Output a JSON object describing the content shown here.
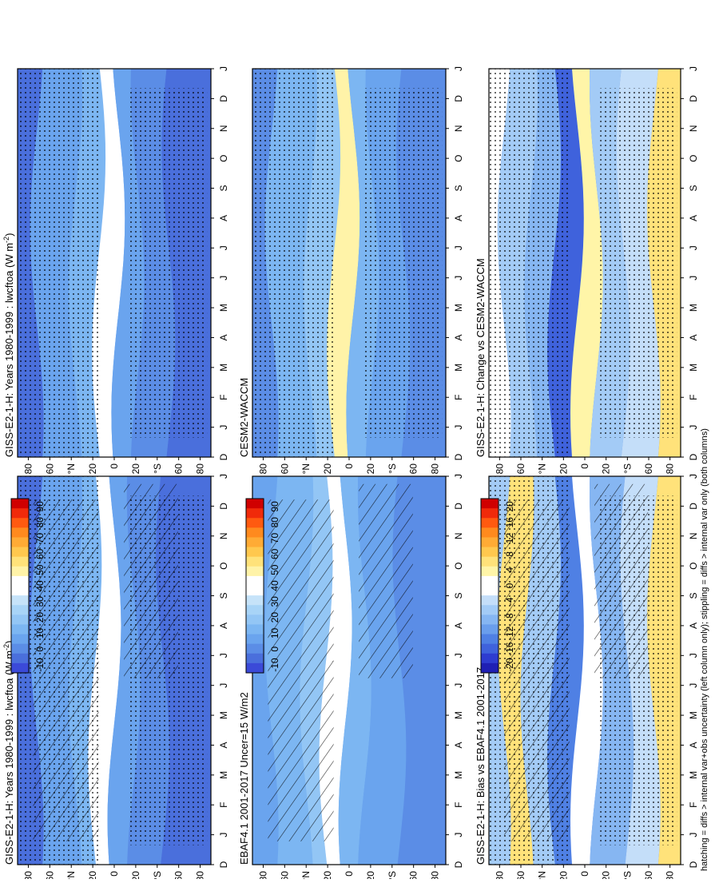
{
  "footnote": "hatching = diffs > internal var+obs uncertainty (left column only); stippling = diffs > internal var only (both columns)",
  "colors": {
    "abs_scale": [
      "#3b4ad8",
      "#4a6fdc",
      "#5b8de6",
      "#6aa4ee",
      "#7cb6f2",
      "#93c6f5",
      "#a8d4f7",
      "#c6e3f9",
      "#ffffff",
      "#ffffff",
      "#fff3a8",
      "#ffe27a",
      "#ffc84e",
      "#ffab35",
      "#ff8a1e",
      "#ff5a10",
      "#f02a0a",
      "#d00000"
    ],
    "diff_scale": [
      "#1f1fb4",
      "#2e3cd0",
      "#3f62dc",
      "#4f80e4",
      "#6a9eec",
      "#86b6f2",
      "#a3cbf6",
      "#c4def9",
      "#ffffff",
      "#ffffff",
      "#fff5a8",
      "#ffe27a",
      "#ffc84e",
      "#ffab35",
      "#ff8a1e",
      "#ff5a10",
      "#f02a0a",
      "#d00000"
    ]
  },
  "panels": [
    {
      "id": "p1",
      "title": "GISS-E2-1-H: Years 1980-1999 : lwcftoa (W m",
      "title_sup": "-2",
      "title_end": ")",
      "colorbar": "abs",
      "hatch": true,
      "stipple": true
    },
    {
      "id": "p2",
      "title": "GISS-E2-1-H: Years 1980-1999 : lwcftoa (W m",
      "title_sup": "-2",
      "title_end": ")",
      "colorbar": "abs",
      "hatch": false,
      "stipple": true
    },
    {
      "id": "p3",
      "title": "EBAF4.1 2001-2017 Uncer=15 W/m2",
      "title_sup": "",
      "title_end": "",
      "colorbar": "abs",
      "hatch": true,
      "stipple": false
    },
    {
      "id": "p4",
      "title": "CESM2-WACCM",
      "title_sup": "",
      "title_end": "",
      "colorbar": "abs",
      "hatch": false,
      "stipple": true
    },
    {
      "id": "p5",
      "title": "GISS-E2-1-H: Bias vs EBAF4.1 2001-2017",
      "title_sup": "",
      "title_end": "",
      "colorbar": "diff",
      "hatch": true,
      "stipple": true
    },
    {
      "id": "p6",
      "title": "GISS-E2-1-H: Change vs CESM2-WACCM",
      "title_sup": "",
      "title_end": "",
      "colorbar": "diff",
      "hatch": false,
      "stipple": true
    }
  ],
  "axes": {
    "months": [
      "D",
      "J",
      "F",
      "M",
      "A",
      "M",
      "J",
      "J",
      "A",
      "S",
      "O",
      "N",
      "D",
      "J"
    ],
    "lat_ticks": [
      "80",
      "60",
      "°N",
      "20",
      "0",
      "20",
      "°S",
      "60",
      "80"
    ]
  },
  "colorbars": {
    "abs": [
      "90",
      "80",
      "70",
      "60",
      "50",
      "40",
      "30",
      "20",
      "10",
      "0",
      "-10"
    ],
    "diff": [
      "20",
      "16",
      "12",
      "8",
      "4",
      "0",
      "-4",
      "-8",
      "-12",
      "-16",
      "-20"
    ]
  },
  "chart_data": [
    {
      "type": "heatmap",
      "panel": "p1",
      "title": "GISS-E2-1-H: Years 1980-1999 : lwcftoa (W m-2)",
      "x": [
        "D",
        "J",
        "F",
        "M",
        "A",
        "M",
        "J",
        "J",
        "A",
        "S",
        "O",
        "N",
        "D",
        "J"
      ],
      "y": [
        "80",
        "60",
        "°N",
        "20",
        "0",
        "20",
        "°S",
        "60",
        "80"
      ],
      "colorbar_ticks": [
        "90",
        "80",
        "70",
        "60",
        "50",
        "40",
        "30",
        "20",
        "10",
        "0",
        "-10"
      ],
      "features": {
        "itcz_peak_approx": 40,
        "extratropics_approx": 25,
        "polar_approx": 10
      }
    },
    {
      "type": "heatmap",
      "panel": "p2",
      "title": "GISS-E2-1-H: Years 1980-1999 : lwcftoa (W m-2)",
      "x": [
        "D",
        "J",
        "F",
        "M",
        "A",
        "M",
        "J",
        "J",
        "A",
        "S",
        "O",
        "N",
        "D",
        "J"
      ],
      "y": [
        "80",
        "60",
        "°N",
        "20",
        "0",
        "20",
        "°S",
        "60",
        "80"
      ],
      "colorbar_ticks": [
        "90",
        "80",
        "70",
        "60",
        "50",
        "40",
        "30",
        "20",
        "10",
        "0",
        "-10"
      ],
      "features": {
        "itcz_peak_approx": 40,
        "extratropics_approx": 25,
        "polar_approx": 10
      }
    },
    {
      "type": "heatmap",
      "panel": "p3",
      "title": "EBAF4.1 2001-2017 Uncer=15 W/m2",
      "x": [
        "D",
        "J",
        "F",
        "M",
        "A",
        "M",
        "J",
        "J",
        "A",
        "S",
        "O",
        "N",
        "D",
        "J"
      ],
      "y": [
        "80",
        "60",
        "°N",
        "20",
        "0",
        "20",
        "°S",
        "60",
        "80"
      ],
      "colorbar_ticks": [
        "90",
        "80",
        "70",
        "60",
        "50",
        "40",
        "30",
        "20",
        "10",
        "0",
        "-10"
      ],
      "features": {
        "itcz_peak_approx": 45,
        "extratropics_approx": 28,
        "polar_approx": 15
      }
    },
    {
      "type": "heatmap",
      "panel": "p4",
      "title": "CESM2-WACCM",
      "x": [
        "D",
        "J",
        "F",
        "M",
        "A",
        "M",
        "J",
        "J",
        "A",
        "S",
        "O",
        "N",
        "D",
        "J"
      ],
      "y": [
        "80",
        "60",
        "°N",
        "20",
        "0",
        "20",
        "°S",
        "60",
        "80"
      ],
      "colorbar_ticks": [
        "90",
        "80",
        "70",
        "60",
        "50",
        "40",
        "30",
        "20",
        "10",
        "0",
        "-10"
      ],
      "features": {
        "itcz_peak_approx": 48,
        "extratropics_approx": 25,
        "polar_approx": 10
      }
    },
    {
      "type": "heatmap",
      "panel": "p5",
      "title": "GISS-E2-1-H: Bias vs EBAF4.1 2001-2017",
      "x": [
        "D",
        "J",
        "F",
        "M",
        "A",
        "M",
        "J",
        "J",
        "A",
        "S",
        "O",
        "N",
        "D",
        "J"
      ],
      "y": [
        "80",
        "60",
        "°N",
        "20",
        "0",
        "20",
        "°S",
        "60",
        "80"
      ],
      "colorbar_ticks": [
        "20",
        "16",
        "12",
        "8",
        "4",
        "0",
        "-4",
        "-8",
        "-12",
        "-16",
        "-20"
      ],
      "features": {
        "tropics_approx": -12,
        "southern_ocean_approx": 4,
        "arctic_spring_approx": 6
      }
    },
    {
      "type": "heatmap",
      "panel": "p6",
      "title": "GISS-E2-1-H: Change vs CESM2-WACCM",
      "x": [
        "D",
        "J",
        "F",
        "M",
        "A",
        "M",
        "J",
        "J",
        "A",
        "S",
        "O",
        "N",
        "D",
        "J"
      ],
      "y": [
        "80",
        "60",
        "°N",
        "20",
        "0",
        "20",
        "°S",
        "60",
        "80"
      ],
      "colorbar_ticks": [
        "20",
        "16",
        "12",
        "8",
        "4",
        "0",
        "-4",
        "-8",
        "-12",
        "-16",
        "-20"
      ],
      "features": {
        "tropics_approx": -14,
        "southern_ocean_approx": 4,
        "arctic_spring_approx": 4
      }
    }
  ]
}
